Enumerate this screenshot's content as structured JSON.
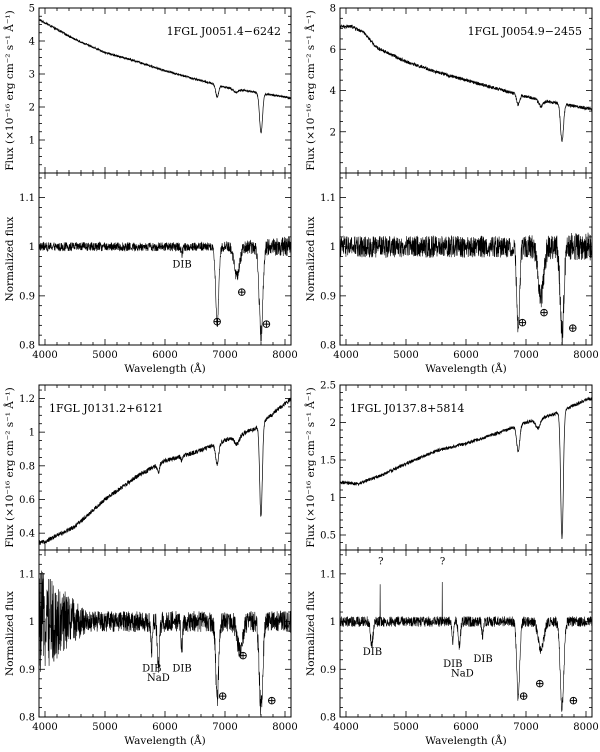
{
  "chart_data": [
    {
      "type": "line",
      "panel": "top-left",
      "annotation": "1FGL J0051.4−6242",
      "ylabel": "Flux (×10⁻¹⁶ erg cm⁻² s⁻¹ Å⁻¹)",
      "xlim": [
        3900,
        8100
      ],
      "ylim": [
        0,
        5
      ],
      "yticks": [
        1,
        2,
        3,
        4,
        5
      ],
      "flux_knots": [
        [
          3900,
          4.65
        ],
        [
          4000,
          4.55
        ],
        [
          4500,
          4.05
        ],
        [
          5000,
          3.65
        ],
        [
          5500,
          3.4
        ],
        [
          6000,
          3.1
        ],
        [
          6500,
          2.85
        ],
        [
          7000,
          2.6
        ],
        [
          7500,
          2.45
        ],
        [
          8000,
          2.3
        ],
        [
          8100,
          2.28
        ]
      ],
      "flux_features": [
        [
          6870,
          0.35,
          25
        ],
        [
          7180,
          0.1,
          40
        ],
        [
          7600,
          1.2,
          25
        ]
      ],
      "flux_noise": 0.03,
      "norm_ylim": [
        0.8,
        1.15
      ],
      "norm_yticks": [
        0.8,
        0.9,
        1,
        1.1
      ],
      "norm_ylabel": "Normalized flux",
      "norm_features": [
        [
          6280,
          0.015,
          15
        ],
        [
          6870,
          0.16,
          25
        ],
        [
          7200,
          0.06,
          45
        ],
        [
          7600,
          0.18,
          30
        ]
      ],
      "norm_noise": 0.009,
      "norm_noise_growth": 0.012,
      "labels": [
        {
          "text": "DIB",
          "x": 6284,
          "y": 0.958,
          "tick_top": 0.977
        },
        {
          "text": "⊕",
          "x": 6870,
          "y": 0.84
        },
        {
          "text": "⊕",
          "x": 7280,
          "y": 0.9
        },
        {
          "text": "⊕",
          "x": 7690,
          "y": 0.835
        }
      ],
      "show_xlabel": true
    },
    {
      "type": "line",
      "panel": "top-right",
      "annotation": "1FGL J0054.9−2455",
      "ylabel": "Flux (×10⁻¹⁶ erg cm⁻² s⁻¹ Å⁻¹)",
      "xlim": [
        3900,
        8100
      ],
      "ylim": [
        0,
        8
      ],
      "yticks": [
        2,
        4,
        6,
        8
      ],
      "flux_knots": [
        [
          3900,
          7.1
        ],
        [
          4100,
          7.1
        ],
        [
          4300,
          6.8
        ],
        [
          4500,
          6.1
        ],
        [
          5000,
          5.4
        ],
        [
          5500,
          4.9
        ],
        [
          6000,
          4.5
        ],
        [
          6500,
          4.1
        ],
        [
          7000,
          3.7
        ],
        [
          7500,
          3.4
        ],
        [
          8000,
          3.15
        ],
        [
          8100,
          3.1
        ]
      ],
      "flux_features": [
        [
          6870,
          0.5,
          25
        ],
        [
          7250,
          0.3,
          40
        ],
        [
          7600,
          1.8,
          25
        ]
      ],
      "flux_noise": 0.08,
      "norm_ylim": [
        0.8,
        1.15
      ],
      "norm_yticks": [
        0.8,
        0.9,
        1,
        1.1
      ],
      "norm_ylabel": "Normalized flux",
      "norm_features": [
        [
          6870,
          0.16,
          25
        ],
        [
          7250,
          0.1,
          45
        ],
        [
          7600,
          0.18,
          30
        ]
      ],
      "norm_noise": 0.022,
      "norm_noise_growth": 0.008,
      "labels": [
        {
          "text": "⊕",
          "x": 6940,
          "y": 0.838
        },
        {
          "text": "⊕",
          "x": 7300,
          "y": 0.858
        },
        {
          "text": "⊕",
          "x": 7780,
          "y": 0.826
        }
      ],
      "show_xlabel": true
    },
    {
      "type": "line",
      "panel": "bottom-left",
      "annotation": "1FGL J0131.2+6121",
      "ylabel": "Flux (×10⁻¹⁶ erg cm⁻² s⁻¹ Å⁻¹)",
      "xlim": [
        3900,
        8100
      ],
      "ylim": [
        0.3,
        1.28
      ],
      "yticks": [
        0.4,
        0.6,
        0.8,
        1,
        1.2
      ],
      "flux_knots": [
        [
          3900,
          0.34
        ],
        [
          4000,
          0.35
        ],
        [
          4500,
          0.44
        ],
        [
          5000,
          0.6
        ],
        [
          5500,
          0.73
        ],
        [
          6000,
          0.83
        ],
        [
          6500,
          0.88
        ],
        [
          7000,
          0.95
        ],
        [
          7500,
          1.02
        ],
        [
          8000,
          1.17
        ],
        [
          8100,
          1.2
        ]
      ],
      "flux_features": [
        [
          5890,
          0.05,
          18
        ],
        [
          6280,
          0.03,
          15
        ],
        [
          6870,
          0.12,
          25
        ],
        [
          7200,
          0.05,
          40
        ],
        [
          7600,
          0.55,
          22
        ]
      ],
      "flux_noise": 0.013,
      "norm_ylim": [
        0.8,
        1.15
      ],
      "norm_yticks": [
        0.8,
        0.9,
        1,
        1.1
      ],
      "norm_ylabel": "Normalized flux",
      "norm_features": [
        [
          5780,
          0.06,
          12
        ],
        [
          5890,
          0.09,
          18
        ],
        [
          6280,
          0.05,
          15
        ],
        [
          6870,
          0.16,
          25
        ],
        [
          7250,
          0.06,
          45
        ],
        [
          7600,
          0.18,
          30
        ]
      ],
      "norm_noise": 0.022,
      "norm_noise_blue": 0.09,
      "labels": [
        {
          "text": "DIB",
          "x": 5780,
          "y": 0.895
        },
        {
          "text": "NaD",
          "x": 5890,
          "y": 0.875
        },
        {
          "text": "DIB",
          "x": 6284,
          "y": 0.895
        },
        {
          "text": "⊕",
          "x": 6960,
          "y": 0.836
        },
        {
          "text": "⊕",
          "x": 7300,
          "y": 0.92
        },
        {
          "text": "⊕",
          "x": 7780,
          "y": 0.826
        }
      ],
      "xlabel": "Wavelength (Å)",
      "xticks": [
        4000,
        5000,
        6000,
        7000,
        8000
      ],
      "show_xlabel": true
    },
    {
      "type": "line",
      "panel": "bottom-right",
      "annotation": "1FGL J0137.8+5814",
      "ylabel": "Flux (×10⁻¹⁶ erg cm⁻² s⁻¹ Å⁻¹)",
      "xlim": [
        3900,
        8100
      ],
      "ylim": [
        0.3,
        2.5
      ],
      "yticks": [
        0.5,
        1,
        1.5,
        2,
        2.5
      ],
      "flux_knots": [
        [
          3900,
          1.2
        ],
        [
          4200,
          1.18
        ],
        [
          4600,
          1.3
        ],
        [
          5000,
          1.45
        ],
        [
          5500,
          1.62
        ],
        [
          6000,
          1.72
        ],
        [
          6500,
          1.85
        ],
        [
          7000,
          2.0
        ],
        [
          7500,
          2.12
        ],
        [
          8000,
          2.3
        ],
        [
          8100,
          2.32
        ]
      ],
      "flux_features": [
        [
          6870,
          0.35,
          25
        ],
        [
          7200,
          0.12,
          40
        ],
        [
          7600,
          1.7,
          22
        ]
      ],
      "flux_noise": 0.022,
      "norm_ylim": [
        0.8,
        1.15
      ],
      "norm_yticks": [
        0.8,
        0.9,
        1,
        1.1
      ],
      "norm_ylabel": "Normalized flux",
      "norm_features": [
        [
          4430,
          0.05,
          20
        ],
        [
          5780,
          0.04,
          12
        ],
        [
          5890,
          0.05,
          18
        ],
        [
          6280,
          0.03,
          15
        ],
        [
          6870,
          0.16,
          25
        ],
        [
          7250,
          0.06,
          45
        ],
        [
          7600,
          0.18,
          30
        ]
      ],
      "norm_spikes": [
        [
          4570,
          0.08
        ],
        [
          5605,
          0.08
        ]
      ],
      "norm_noise": 0.011,
      "labels": [
        {
          "text": "DIB",
          "x": 4440,
          "y": 0.93
        },
        {
          "text": "?",
          "x": 4580,
          "y": 1.12
        },
        {
          "text": "?",
          "x": 5610,
          "y": 1.12
        },
        {
          "text": "DIB",
          "x": 5780,
          "y": 0.905
        },
        {
          "text": "NaD",
          "x": 5940,
          "y": 0.885
        },
        {
          "text": "DIB",
          "x": 6284,
          "y": 0.915
        },
        {
          "text": "⊕",
          "x": 6960,
          "y": 0.836
        },
        {
          "text": "⊕",
          "x": 7230,
          "y": 0.862
        },
        {
          "text": "⊕",
          "x": 7790,
          "y": 0.826
        }
      ],
      "xlabel": "Wavelength (Å)",
      "xticks": [
        4000,
        5000,
        6000,
        7000,
        8000
      ],
      "show_xlabel": true
    }
  ],
  "shared": {
    "xlabel": "Wavelength (Å)",
    "xticks": [
      4000,
      5000,
      6000,
      7000,
      8000
    ],
    "xlim": [
      3900,
      8100
    ]
  }
}
